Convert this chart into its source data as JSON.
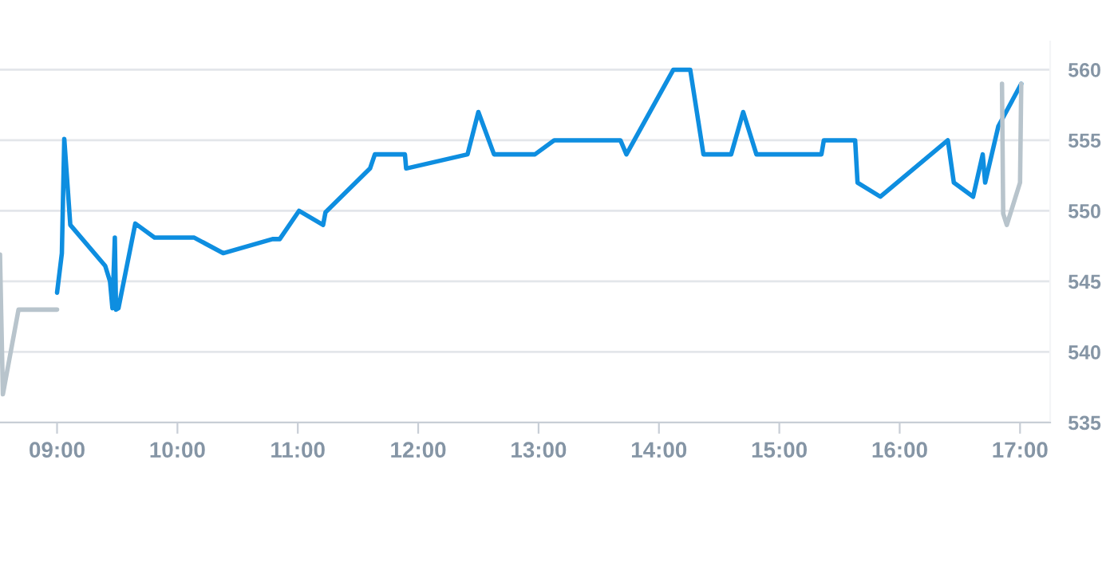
{
  "chart_data": {
    "type": "line",
    "xlim": [
      8.526,
      17.25
    ],
    "xticks": [
      {
        "value": 9,
        "label": "09:00"
      },
      {
        "value": 10,
        "label": "10:00"
      },
      {
        "value": 11,
        "label": "11:00"
      },
      {
        "value": 12,
        "label": "12:00"
      },
      {
        "value": 13,
        "label": "13:00"
      },
      {
        "value": 14,
        "label": "14:00"
      },
      {
        "value": 15,
        "label": "15:00"
      },
      {
        "value": 16,
        "label": "16:00"
      },
      {
        "value": 17,
        "label": "17:00"
      }
    ],
    "ylim": [
      535,
      562
    ],
    "yticks": [
      535,
      540,
      545,
      550,
      555,
      560
    ],
    "grid": "y",
    "legend": false,
    "marker": "none",
    "line_style": "solid",
    "series": [
      {
        "color": "#b8c4cc",
        "x": [
          8.526,
          8.55,
          8.68,
          9.0
        ],
        "values": [
          546.9,
          537,
          543,
          543
        ]
      },
      {
        "color": "#0e8ee0",
        "x": [
          9.0,
          9.04,
          9.06,
          9.11,
          9.4,
          9.44,
          9.46,
          9.48,
          9.49,
          9.51,
          9.65,
          9.81,
          10.14,
          10.38,
          10.79,
          10.85,
          11.01,
          11.21,
          11.23,
          11.6,
          11.64,
          11.82,
          11.89,
          11.9,
          12.41,
          12.5,
          12.63,
          12.97,
          13.13,
          13.68,
          13.73,
          14.12,
          14.26,
          14.37,
          14.6,
          14.7,
          14.81,
          15.35,
          15.37,
          15.63,
          15.65,
          15.84,
          16.4,
          16.45,
          16.61,
          16.69,
          16.71,
          16.82,
          17.01
        ],
        "values": [
          544.2,
          547,
          555.1,
          549,
          546.1,
          545,
          543.1,
          548.1,
          543,
          543.1,
          549.1,
          548.1,
          548.1,
          547,
          548,
          548,
          550,
          549,
          549.9,
          553,
          554,
          554,
          554,
          553,
          554,
          557,
          554,
          554,
          555,
          555,
          554,
          560,
          560,
          554,
          554,
          557,
          554,
          554,
          555,
          555,
          552,
          551,
          555,
          552,
          551,
          554,
          552,
          556,
          559
        ]
      },
      {
        "color": "#b8c4cc",
        "x": [
          16.85,
          16.86,
          16.89,
          17.0,
          17.01
        ],
        "values": [
          559,
          549.8,
          549,
          552,
          559
        ]
      }
    ]
  }
}
